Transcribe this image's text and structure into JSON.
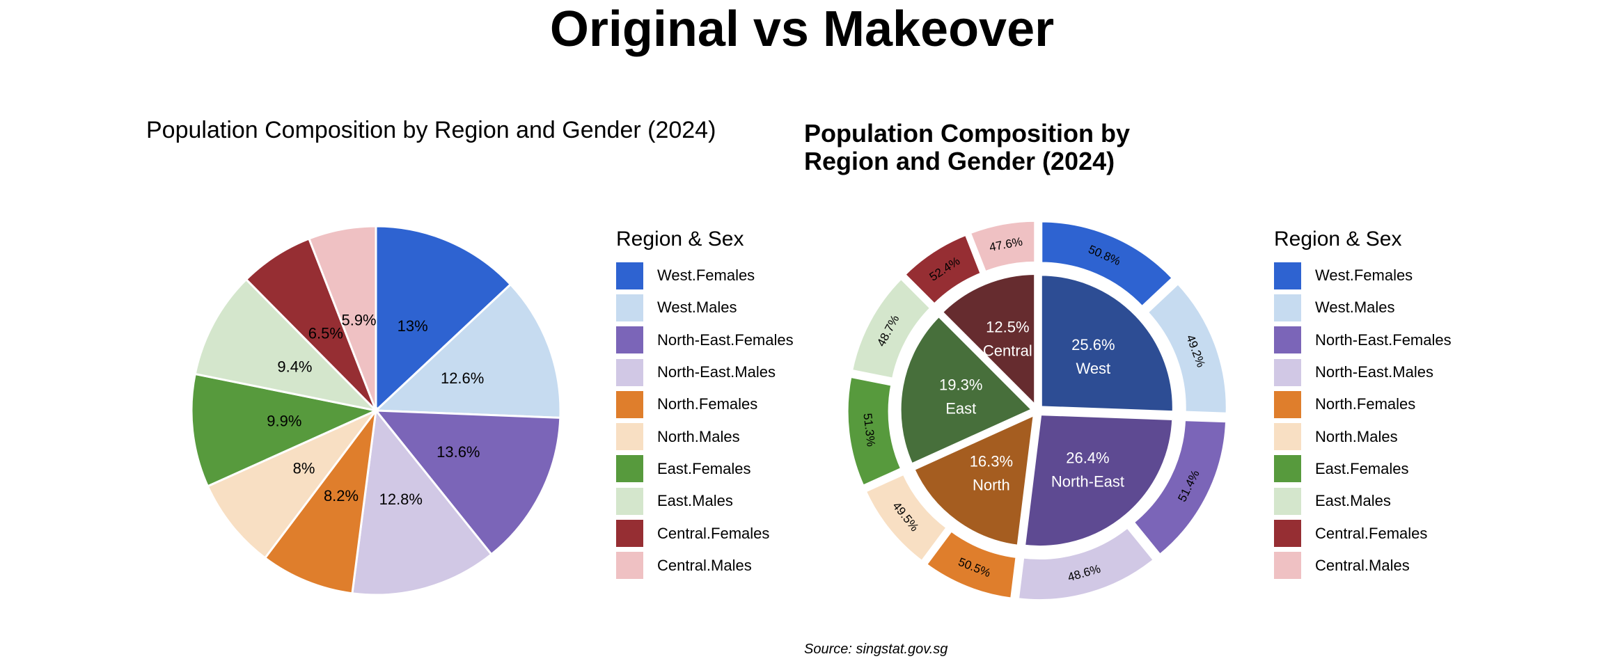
{
  "title": "Original vs Makeover",
  "source": "Source: singstat.gov.sg",
  "legend_title": "Region & Sex",
  "colors": {
    "West.Females": "#2e63d1",
    "West.Males": "#c6dbf0",
    "North-East.Females": "#7b65b8",
    "North-East.Males": "#d1c8e5",
    "North.Females": "#df7e2c",
    "North.Males": "#f8dfc3",
    "East.Females": "#579a3d",
    "East.Males": "#d4e6cc",
    "Central.Females": "#962e33",
    "Central.Males": "#efc1c3",
    "West": "#2d4d94",
    "North-East": "#5e4a92",
    "North": "#a55d20",
    "East": "#476f3b",
    "Central": "#662c2f"
  },
  "chart_data": [
    {
      "type": "pie",
      "title": "Population Composition by Region and Gender (2024)",
      "legend_title": "Region & Sex",
      "legend_position": "right",
      "categories": [
        "West.Females",
        "West.Males",
        "North-East.Females",
        "North-East.Males",
        "North.Females",
        "North.Males",
        "East.Females",
        "East.Males",
        "Central.Females",
        "Central.Males"
      ],
      "values": [
        13,
        12.6,
        13.6,
        12.8,
        8.2,
        8,
        9.9,
        9.4,
        6.5,
        5.9
      ],
      "labels": [
        "13%",
        "12.6%",
        "13.6%",
        "12.8%",
        "8.2%",
        "8%",
        "9.9%",
        "9.4%",
        "6.5%",
        "5.9%"
      ]
    },
    {
      "type": "pie",
      "title": "Population Composition by Region and Gender (2024)",
      "title_lines": [
        "Population Composition by",
        "Region and Gender (2024)"
      ],
      "legend_title": "Region & Sex",
      "legend_position": "right",
      "inner": {
        "categories": [
          "West",
          "North-East",
          "North",
          "East",
          "Central"
        ],
        "values": [
          25.6,
          26.4,
          16.3,
          19.3,
          12.5
        ],
        "labels": [
          "25.6%",
          "26.4%",
          "16.3%",
          "19.3%",
          "12.5%"
        ]
      },
      "outer": {
        "categories": [
          "West.Females",
          "West.Males",
          "North-East.Females",
          "North-East.Males",
          "North.Females",
          "North.Males",
          "East.Females",
          "East.Males",
          "Central.Females",
          "Central.Males"
        ],
        "values": [
          50.8,
          49.2,
          51.4,
          48.6,
          50.5,
          49.5,
          51.3,
          48.7,
          52.4,
          47.6
        ],
        "labels": [
          "50.8%",
          "49.2%",
          "51.4%",
          "48.6%",
          "50.5%",
          "49.5%",
          "51.3%",
          "48.7%",
          "52.4%",
          "47.6%"
        ]
      }
    }
  ]
}
